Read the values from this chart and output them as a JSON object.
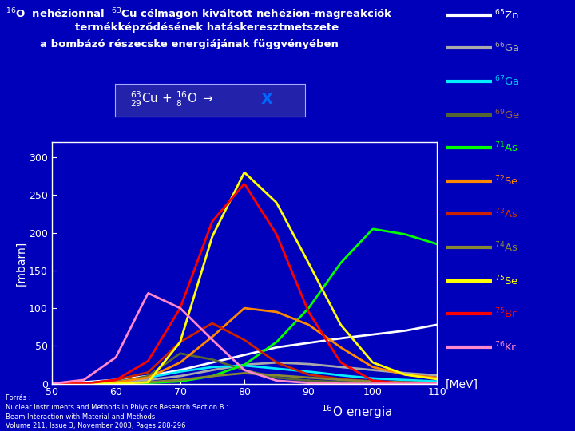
{
  "background_color": "#0000bb",
  "title_line1": "$^{16}$O  nehézionnal  $^{63}$Cu célmagon kiváltott nehézion-magreakciók",
  "title_line2": "termékképződésének hatáskeresztmetszete",
  "title_line3": "a bombázó részecske energiájának függvényében",
  "ylabel": "[mbarn]",
  "xlabel_mev": "[MeV]",
  "xlabel_energia": "$^{16}$O energia",
  "xmin": 50,
  "xmax": 110,
  "ymin": 0,
  "ymax": 320,
  "yticks": [
    0,
    50,
    100,
    150,
    200,
    250,
    300
  ],
  "xticks": [
    50,
    60,
    70,
    80,
    90,
    100,
    110
  ],
  "footnote": "Forrás :\nNuclear Instruments and Methods in Phiysics Research Section B :\nBeam Interaction with Material and Methods\nVolume 211, Issue 3, November 2003, Pages 288-296",
  "series": [
    {
      "label": "$^{65}$Zn",
      "color": "#ffffff",
      "label_color": "#ffffff",
      "peaks": [
        [
          50,
          0
        ],
        [
          55,
          2
        ],
        [
          60,
          5
        ],
        [
          65,
          10
        ],
        [
          70,
          18
        ],
        [
          75,
          28
        ],
        [
          80,
          38
        ],
        [
          85,
          48
        ],
        [
          90,
          54
        ],
        [
          95,
          60
        ],
        [
          100,
          65
        ],
        [
          105,
          70
        ],
        [
          110,
          78
        ]
      ]
    },
    {
      "label": "$^{66}$Ga",
      "color": "#aaaaaa",
      "label_color": "#aaaaaa",
      "peaks": [
        [
          50,
          0
        ],
        [
          55,
          0
        ],
        [
          60,
          2
        ],
        [
          65,
          5
        ],
        [
          70,
          10
        ],
        [
          75,
          18
        ],
        [
          80,
          25
        ],
        [
          85,
          28
        ],
        [
          90,
          26
        ],
        [
          95,
          22
        ],
        [
          100,
          18
        ],
        [
          105,
          14
        ],
        [
          110,
          11
        ]
      ]
    },
    {
      "label": "$^{67}$Ga",
      "color": "#00eeff",
      "label_color": "#00ccff",
      "peaks": [
        [
          50,
          0
        ],
        [
          55,
          1
        ],
        [
          60,
          3
        ],
        [
          65,
          8
        ],
        [
          70,
          16
        ],
        [
          75,
          22
        ],
        [
          80,
          24
        ],
        [
          85,
          20
        ],
        [
          90,
          16
        ],
        [
          95,
          11
        ],
        [
          100,
          7
        ],
        [
          105,
          5
        ],
        [
          110,
          3
        ]
      ]
    },
    {
      "label": "$^{69}$Ge",
      "color": "#556633",
      "label_color": "#996633",
      "peaks": [
        [
          50,
          0
        ],
        [
          55,
          0
        ],
        [
          60,
          2
        ],
        [
          65,
          10
        ],
        [
          70,
          40
        ],
        [
          75,
          32
        ],
        [
          80,
          18
        ],
        [
          85,
          8
        ],
        [
          90,
          4
        ],
        [
          95,
          2
        ],
        [
          100,
          1
        ],
        [
          105,
          0
        ],
        [
          110,
          0
        ]
      ]
    },
    {
      "label": "$^{71}$As",
      "color": "#00ff00",
      "label_color": "#00ff00",
      "peaks": [
        [
          50,
          0
        ],
        [
          55,
          0
        ],
        [
          60,
          0
        ],
        [
          65,
          1
        ],
        [
          70,
          3
        ],
        [
          75,
          10
        ],
        [
          80,
          25
        ],
        [
          85,
          55
        ],
        [
          90,
          100
        ],
        [
          95,
          160
        ],
        [
          100,
          205
        ],
        [
          105,
          198
        ],
        [
          110,
          185
        ]
      ]
    },
    {
      "label": "$^{72}$Se",
      "color": "#ff8800",
      "label_color": "#ff8800",
      "peaks": [
        [
          50,
          0
        ],
        [
          55,
          0
        ],
        [
          60,
          2
        ],
        [
          65,
          8
        ],
        [
          70,
          28
        ],
        [
          75,
          62
        ],
        [
          80,
          100
        ],
        [
          85,
          95
        ],
        [
          90,
          78
        ],
        [
          95,
          48
        ],
        [
          100,
          22
        ],
        [
          105,
          12
        ],
        [
          110,
          8
        ]
      ]
    },
    {
      "label": "$^{73}$As",
      "color": "#cc2200",
      "label_color": "#cc3300",
      "peaks": [
        [
          50,
          0
        ],
        [
          55,
          0
        ],
        [
          60,
          5
        ],
        [
          65,
          15
        ],
        [
          70,
          55
        ],
        [
          75,
          80
        ],
        [
          80,
          58
        ],
        [
          85,
          28
        ],
        [
          90,
          12
        ],
        [
          95,
          6
        ],
        [
          100,
          3
        ],
        [
          105,
          1
        ],
        [
          110,
          0
        ]
      ]
    },
    {
      "label": "$^{74}$As",
      "color": "#888833",
      "label_color": "#888833",
      "peaks": [
        [
          50,
          0
        ],
        [
          55,
          0
        ],
        [
          60,
          0
        ],
        [
          65,
          2
        ],
        [
          70,
          5
        ],
        [
          75,
          10
        ],
        [
          80,
          14
        ],
        [
          85,
          11
        ],
        [
          90,
          8
        ],
        [
          95,
          5
        ],
        [
          100,
          3
        ],
        [
          105,
          2
        ],
        [
          110,
          1
        ]
      ]
    },
    {
      "label": "$^{75}$Se",
      "color": "#ffff00",
      "label_color": "#ffff00",
      "peaks": [
        [
          50,
          0
        ],
        [
          55,
          0
        ],
        [
          60,
          0
        ],
        [
          65,
          2
        ],
        [
          70,
          55
        ],
        [
          75,
          195
        ],
        [
          80,
          280
        ],
        [
          85,
          240
        ],
        [
          90,
          160
        ],
        [
          95,
          78
        ],
        [
          100,
          28
        ],
        [
          105,
          12
        ],
        [
          110,
          6
        ]
      ]
    },
    {
      "label": "$^{75}$Br",
      "color": "#ff0000",
      "label_color": "#ff0000",
      "peaks": [
        [
          50,
          0
        ],
        [
          55,
          0
        ],
        [
          60,
          5
        ],
        [
          65,
          30
        ],
        [
          70,
          100
        ],
        [
          75,
          215
        ],
        [
          80,
          265
        ],
        [
          85,
          198
        ],
        [
          90,
          95
        ],
        [
          95,
          28
        ],
        [
          100,
          4
        ],
        [
          105,
          0
        ],
        [
          110,
          0
        ]
      ]
    },
    {
      "label": "$^{76}$Kr",
      "color": "#ff88cc",
      "label_color": "#ff88cc",
      "peaks": [
        [
          50,
          0
        ],
        [
          55,
          5
        ],
        [
          60,
          35
        ],
        [
          65,
          120
        ],
        [
          70,
          100
        ],
        [
          75,
          58
        ],
        [
          80,
          18
        ],
        [
          85,
          4
        ],
        [
          90,
          1
        ],
        [
          95,
          0
        ],
        [
          100,
          0
        ],
        [
          105,
          0
        ],
        [
          110,
          0
        ]
      ]
    }
  ]
}
